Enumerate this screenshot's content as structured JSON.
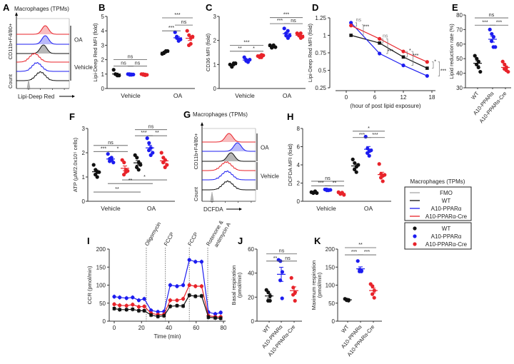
{
  "colors": {
    "WT": "#111111",
    "A10-PPARα": "#1c1cf0",
    "A10-PPARα-Cre": "#e8232a",
    "FMO": "#a8a8a8"
  },
  "legend": {
    "title": "Macrophages (TPMs)",
    "lines": [
      "FMO",
      "WT",
      "A10-PPARα",
      "A10-PPARα-Cre"
    ],
    "dots": [
      "WT",
      "A10-PPARα",
      "A10-PPARα-Cre"
    ]
  },
  "chart_data": [
    {
      "panel": "A",
      "type": "histogram",
      "title": "Macrophages (TPMs)",
      "xlabel": "Lipi-Deep Red",
      "ylabel": "CD11b+F4/80+",
      "ylabel2": "Count",
      "group_labels": [
        "OA",
        "Vehicle"
      ],
      "traces": [
        {
          "series": "A10-PPARα-Cre",
          "treatment": "OA",
          "peak_log10": 3.4
        },
        {
          "series": "A10-PPARα",
          "treatment": "OA",
          "peak_log10": 3.4
        },
        {
          "series": "WT",
          "treatment": "OA",
          "peak_log10": 3.25
        },
        {
          "series": "A10-PPARα-Cre",
          "treatment": "Vehicle",
          "peak_log10": 2.5
        },
        {
          "series": "A10-PPARα",
          "treatment": "Vehicle",
          "peak_log10": 2.7
        },
        {
          "series": "WT",
          "treatment": "Vehicle",
          "peak_log10": 3.0
        },
        {
          "series": "FMO",
          "treatment": "FMO",
          "peak_log10": 2.0
        }
      ]
    },
    {
      "panel": "B",
      "type": "scatter",
      "ylabel": "Lipi-Deep Red MFI (fold)",
      "ylim": [
        0,
        5
      ],
      "yticks": [
        0,
        1,
        2,
        3,
        4,
        5
      ],
      "categories": [
        "Vehicle",
        "OA"
      ],
      "groups": [
        [
          {
            "series": "WT",
            "values": [
              1.3,
              1.0,
              0.9,
              1.0,
              0.95,
              0.9
            ]
          },
          {
            "series": "A10-PPARα",
            "values": [
              1.0,
              0.95,
              0.98,
              1.0,
              0.95,
              0.97
            ]
          },
          {
            "series": "A10-PPARα-Cre",
            "values": [
              1.0,
              0.95,
              0.92,
              1.0,
              0.97,
              0.95
            ]
          }
        ],
        [
          {
            "series": "WT",
            "values": [
              2.4,
              2.5,
              2.6,
              2.45,
              2.55,
              2.6
            ]
          },
          {
            "series": "A10-PPARα",
            "values": [
              3.9,
              3.5,
              3.4,
              3.6,
              3.3,
              3.4
            ]
          },
          {
            "series": "A10-PPARα-Cre",
            "values": [
              4.0,
              3.7,
              3.5,
              3.0,
              3.1,
              3.6
            ]
          }
        ]
      ],
      "sig": [
        {
          "label": "ns",
          "from": 0,
          "to": 2,
          "y": 2.0
        },
        {
          "label": "ns",
          "from": 0,
          "to": 1,
          "y": 1.55
        },
        {
          "label": "ns",
          "from": 1,
          "to": 2,
          "y": 1.55
        },
        {
          "label": "***",
          "from": 3,
          "to": 5,
          "y": 4.9
        },
        {
          "label": "ns",
          "from": 4,
          "to": 5,
          "y": 4.4
        },
        {
          "label": "***",
          "from": 3,
          "to": 4,
          "y": 4.0
        }
      ]
    },
    {
      "panel": "C",
      "type": "scatter",
      "ylabel": "CD36 MFI (fold)",
      "ylim": [
        0,
        3
      ],
      "yticks": [
        0,
        1,
        2,
        3
      ],
      "categories": [
        "Vehicle",
        "OA"
      ],
      "groups": [
        [
          {
            "series": "WT",
            "values": [
              1.0,
              0.9,
              1.05,
              0.95,
              1.0,
              1.05
            ]
          },
          {
            "series": "A10-PPARα",
            "values": [
              1.3,
              1.15,
              1.1,
              1.2,
              1.15,
              1.2
            ]
          },
          {
            "series": "A10-PPARα-Cre",
            "values": [
              1.35,
              1.3,
              1.4,
              1.35,
              1.3,
              1.38
            ]
          }
        ],
        [
          {
            "series": "WT",
            "values": [
              1.8,
              1.7,
              1.75,
              1.7,
              1.8,
              1.72
            ]
          },
          {
            "series": "A10-PPARα",
            "values": [
              2.5,
              2.2,
              2.1,
              2.3,
              2.4,
              2.2
            ]
          },
          {
            "series": "A10-PPARα-Cre",
            "values": [
              2.3,
              2.2,
              2.1,
              2.25,
              2.3,
              2.15
            ]
          }
        ]
      ],
      "sig": [
        {
          "label": "***",
          "from": 0,
          "to": 2,
          "y": 1.8
        },
        {
          "label": "**",
          "from": 0,
          "to": 1,
          "y": 1.55
        },
        {
          "label": "*",
          "from": 1,
          "to": 2,
          "y": 1.55
        },
        {
          "label": "***",
          "from": 3,
          "to": 5,
          "y": 2.95
        },
        {
          "label": "***",
          "from": 3,
          "to": 4,
          "y": 2.7
        },
        {
          "label": "ns",
          "from": 4,
          "to": 5,
          "y": 2.7
        }
      ]
    },
    {
      "panel": "D",
      "type": "line",
      "xlabel": "(hour of post lipid exposure)",
      "ylabel": "Lipi-Deep Red MFI (fold)",
      "xlim": [
        0,
        18
      ],
      "ylim": [
        0.25,
        1.25
      ],
      "xticks": [
        0,
        6,
        12,
        18
      ],
      "yticks": [
        0.25,
        0.5,
        0.75,
        1,
        1.25
      ],
      "x": [
        1,
        7,
        12,
        17
      ],
      "series": [
        {
          "name": "WT",
          "values": [
            1.0,
            0.89,
            0.69,
            0.53
          ]
        },
        {
          "name": "A10-PPARα",
          "values": [
            1.18,
            0.74,
            0.57,
            0.42
          ]
        },
        {
          "name": "A10-PPARα-Cre",
          "values": [
            1.14,
            0.95,
            0.77,
            0.62
          ]
        }
      ],
      "annotations": [
        {
          "label": "ns",
          "x": 2.6,
          "y": 1.2
        },
        {
          "label": "***",
          "x": 4.2,
          "y": 1.1
        },
        {
          "label": "ns",
          "x": 8.2,
          "y": 0.97
        },
        {
          "label": "***",
          "x": 9.3,
          "y": 0.75
        },
        {
          "label": "*",
          "x": 13.4,
          "y": 0.76
        },
        {
          "label": "***",
          "x": 14.6,
          "y": 0.69
        },
        {
          "label": "*",
          "x": 18.7,
          "y": 0.6
        },
        {
          "label": "***",
          "x": 20.4,
          "y": 0.47
        }
      ]
    },
    {
      "panel": "E",
      "type": "scatter",
      "ylabel": "Lipid reduction rate (%)",
      "ylim": [
        30,
        80
      ],
      "yticks": [
        30,
        40,
        50,
        60,
        70,
        80
      ],
      "xticklabels": [
        "WT",
        "A10-PPARα",
        "A10-PPARα-Cre"
      ],
      "groups": [
        [
          {
            "series": "WT",
            "values": [
              52,
              50,
              48,
              46,
              44,
              41
            ]
          },
          {
            "series": "A10-PPARα",
            "values": [
              70,
              67,
              65,
              62,
              58,
              58
            ]
          },
          {
            "series": "A10-PPARα-Cre",
            "values": [
              48,
              46,
              44,
              43,
              42,
              41
            ]
          }
        ]
      ],
      "sig": [
        {
          "label": "ns",
          "from": 0,
          "to": 2,
          "y": 78
        },
        {
          "label": "***",
          "from": 0,
          "to": 1,
          "y": 73
        },
        {
          "label": "***",
          "from": 1,
          "to": 2,
          "y": 73
        }
      ]
    },
    {
      "panel": "F",
      "type": "scatter",
      "ylabel": "ATP (μM/2.0x10⁵ cells)",
      "ylim": [
        0,
        3
      ],
      "yticks": [
        0,
        1,
        2,
        3
      ],
      "categories": [
        "Vehicle",
        "OA"
      ],
      "groups": [
        [
          {
            "series": "WT",
            "values": [
              1.5,
              1.3,
              1.2,
              1.1,
              1.0,
              1.2
            ]
          },
          {
            "series": "A10-PPARα",
            "values": [
              1.95,
              1.75,
              1.7,
              1.65,
              1.8,
              1.6
            ]
          },
          {
            "series": "A10-PPARα-Cre",
            "values": [
              1.7,
              1.6,
              1.3,
              1.1,
              1.2,
              1.25
            ]
          }
        ],
        [
          {
            "series": "WT",
            "values": [
              1.9,
              1.8,
              1.6,
              1.4,
              1.3,
              1.5
            ]
          },
          {
            "series": "A10-PPARα",
            "values": [
              2.6,
              2.4,
              2.2,
              2.1,
              1.9,
              2.0
            ]
          },
          {
            "series": "A10-PPARα-Cre",
            "values": [
              2.0,
              1.8,
              1.7,
              1.6,
              1.4,
              1.5
            ]
          }
        ]
      ],
      "sig": [
        {
          "label": "ns",
          "from": 0,
          "to": 2,
          "y": 2.3
        },
        {
          "label": "***",
          "from": 0,
          "to": 1,
          "y": 2.05
        },
        {
          "label": "*",
          "from": 1,
          "to": 2,
          "y": 2.05
        },
        {
          "label": "ns",
          "from": 3,
          "to": 5,
          "y": 2.95
        },
        {
          "label": "***",
          "from": 3,
          "to": 4,
          "y": 2.7
        },
        {
          "label": "**",
          "from": 4,
          "to": 5,
          "y": 2.7
        },
        {
          "label": "*",
          "from": 2,
          "to": 5,
          "y": 0.88
        },
        {
          "label": "**",
          "from": 1,
          "to": 4,
          "y": 0.73
        },
        {
          "label": "**",
          "from": 0,
          "to": 3,
          "y": 0.38
        }
      ]
    },
    {
      "panel": "G",
      "type": "histogram",
      "title": "Macrophages (TPMs)",
      "xlabel": "DCFDA",
      "ylabel": "CD11b+F4/80+",
      "ylabel2": "Count",
      "group_labels": [
        "OA",
        "Vehicle"
      ],
      "traces": [
        {
          "series": "A10-PPARα-Cre",
          "treatment": "OA",
          "peak_log10": 3.3
        },
        {
          "series": "A10-PPARα",
          "treatment": "OA",
          "peak_log10": 3.95
        },
        {
          "series": "WT",
          "treatment": "OA",
          "peak_log10": 3.45
        },
        {
          "series": "A10-PPARα-Cre",
          "treatment": "Vehicle",
          "peak_log10": 3.1
        },
        {
          "series": "A10-PPARα",
          "treatment": "Vehicle",
          "peak_log10": 3.15
        },
        {
          "series": "WT",
          "treatment": "Vehicle",
          "peak_log10": 3.2
        },
        {
          "series": "FMO",
          "treatment": "FMO",
          "peak_log10": 2.0
        }
      ]
    },
    {
      "panel": "H",
      "type": "scatter",
      "ylabel": "DCFDA MFI (fold)",
      "ylim": [
        0,
        8
      ],
      "yticks": [
        0,
        2,
        4,
        6,
        8
      ],
      "categories": [
        "Vehicle",
        "OA"
      ],
      "groups": [
        [
          {
            "series": "WT",
            "values": [
              1.0,
              0.9,
              1.1,
              0.95,
              1.0,
              0.9
            ]
          },
          {
            "series": "A10-PPARα",
            "values": [
              1.3,
              1.2,
              1.25,
              1.3,
              1.2,
              1.25
            ]
          },
          {
            "series": "A10-PPARα-Cre",
            "values": [
              1.0,
              0.8,
              0.9,
              0.85,
              0.95,
              0.7
            ]
          }
        ],
        [
          {
            "series": "WT",
            "values": [
              4.6,
              4.2,
              3.8,
              3.5,
              3.2,
              4.0
            ]
          },
          {
            "series": "A10-PPARα",
            "values": [
              7.1,
              5.8,
              5.5,
              5.3,
              5.0,
              5.6
            ]
          },
          {
            "series": "A10-PPARα-Cre",
            "values": [
              4.1,
              3.0,
              2.8,
              2.6,
              2.2,
              2.9
            ]
          }
        ]
      ],
      "sig": [
        {
          "label": "ns",
          "from": 0,
          "to": 2,
          "y": 2.2
        },
        {
          "label": "***",
          "from": 0,
          "to": 1,
          "y": 1.7
        },
        {
          "label": "**",
          "from": 1,
          "to": 2,
          "y": 1.7
        },
        {
          "label": "*",
          "from": 3,
          "to": 5,
          "y": 7.7
        },
        {
          "label": "***",
          "from": 3,
          "to": 4,
          "y": 7.0
        },
        {
          "label": "***",
          "from": 4,
          "to": 5,
          "y": 7.0
        }
      ]
    },
    {
      "panel": "I",
      "type": "line",
      "xlabel": "Time (min)",
      "ylabel": "CCR (pmol/min)",
      "xlim": [
        0,
        80
      ],
      "ylim": [
        0,
        200
      ],
      "xticks": [
        0,
        20,
        40,
        60,
        80
      ],
      "yticks": [
        0,
        50,
        100,
        150,
        200
      ],
      "x": [
        0,
        4,
        9,
        13.5,
        18,
        22,
        27,
        32,
        36.5,
        41,
        46,
        50.5,
        55,
        59.5,
        64,
        69,
        74,
        78
      ],
      "series": [
        {
          "name": "A10-PPARα",
          "values": [
            68,
            66,
            64,
            66,
            58,
            62,
            30,
            26,
            27,
            100,
            97,
            100,
            170,
            165,
            165,
            25,
            20,
            24
          ]
        },
        {
          "name": "A10-PPARα-Cre",
          "values": [
            47,
            44,
            43,
            46,
            40,
            41,
            22,
            18,
            19,
            58,
            58,
            62,
            100,
            97,
            97,
            15,
            12,
            12
          ]
        },
        {
          "name": "WT",
          "values": [
            35,
            32,
            32,
            33,
            29,
            29,
            17,
            13,
            15,
            41,
            43,
            42,
            72,
            69,
            70,
            11,
            9,
            8
          ]
        }
      ],
      "injections": [
        {
          "label": "Oligomycin",
          "x": 23.5
        },
        {
          "label": "FCCP",
          "x": 37.5
        },
        {
          "label": "FCCP",
          "x": 55
        },
        {
          "label": "Rotenone &",
          "label2": "antimycin A",
          "x": 68.5
        }
      ]
    },
    {
      "panel": "J",
      "type": "scatter",
      "ylabel": "Basal respiration",
      "ylabel2": "(pmol/min)",
      "ylim": [
        0,
        60
      ],
      "yticks": [
        0,
        20,
        40,
        60
      ],
      "xticklabels": [
        "WT",
        "A10-PPARα",
        "A10-PPARα-Cre"
      ],
      "groups": [
        [
          {
            "series": "WT",
            "values": [
              26,
              24,
              21,
              17,
              17
            ]
          },
          {
            "series": "A10-PPARα",
            "values": [
              51,
              50,
              41,
              34,
              19
            ]
          },
          {
            "series": "A10-PPARα-Cre",
            "values": [
              36,
              28,
              24,
              22,
              17
            ]
          }
        ]
      ],
      "sig": [
        {
          "label": "ns",
          "from": 0,
          "to": 2,
          "y": 56
        },
        {
          "label": "**",
          "from": 0,
          "to": 1,
          "y": 50
        },
        {
          "label": "ns",
          "from": 1,
          "to": 2,
          "y": 50
        }
      ]
    },
    {
      "panel": "K",
      "type": "scatter",
      "ylabel": "Maximum respiration",
      "ylabel2": "(pmol/min)",
      "ylim": [
        0,
        200
      ],
      "yticks": [
        0,
        50,
        100,
        150,
        200
      ],
      "xticklabels": [
        "WT",
        "A10-PPARα",
        "A10-PPARα-Cre"
      ],
      "groups": [
        [
          {
            "series": "WT",
            "values": [
              62,
              60,
              59,
              58,
              57
            ]
          },
          {
            "series": "A10-PPARα",
            "values": [
              167,
              143,
              140,
              138,
              138
            ]
          },
          {
            "series": "A10-PPARα-Cre",
            "values": [
              103,
              97,
              85,
              75,
              65
            ]
          }
        ]
      ],
      "sig": [
        {
          "label": "**",
          "from": 0,
          "to": 2,
          "y": 204
        },
        {
          "label": "***",
          "from": 0,
          "to": 1,
          "y": 184
        },
        {
          "label": "***",
          "from": 1,
          "to": 2,
          "y": 184
        }
      ]
    }
  ]
}
